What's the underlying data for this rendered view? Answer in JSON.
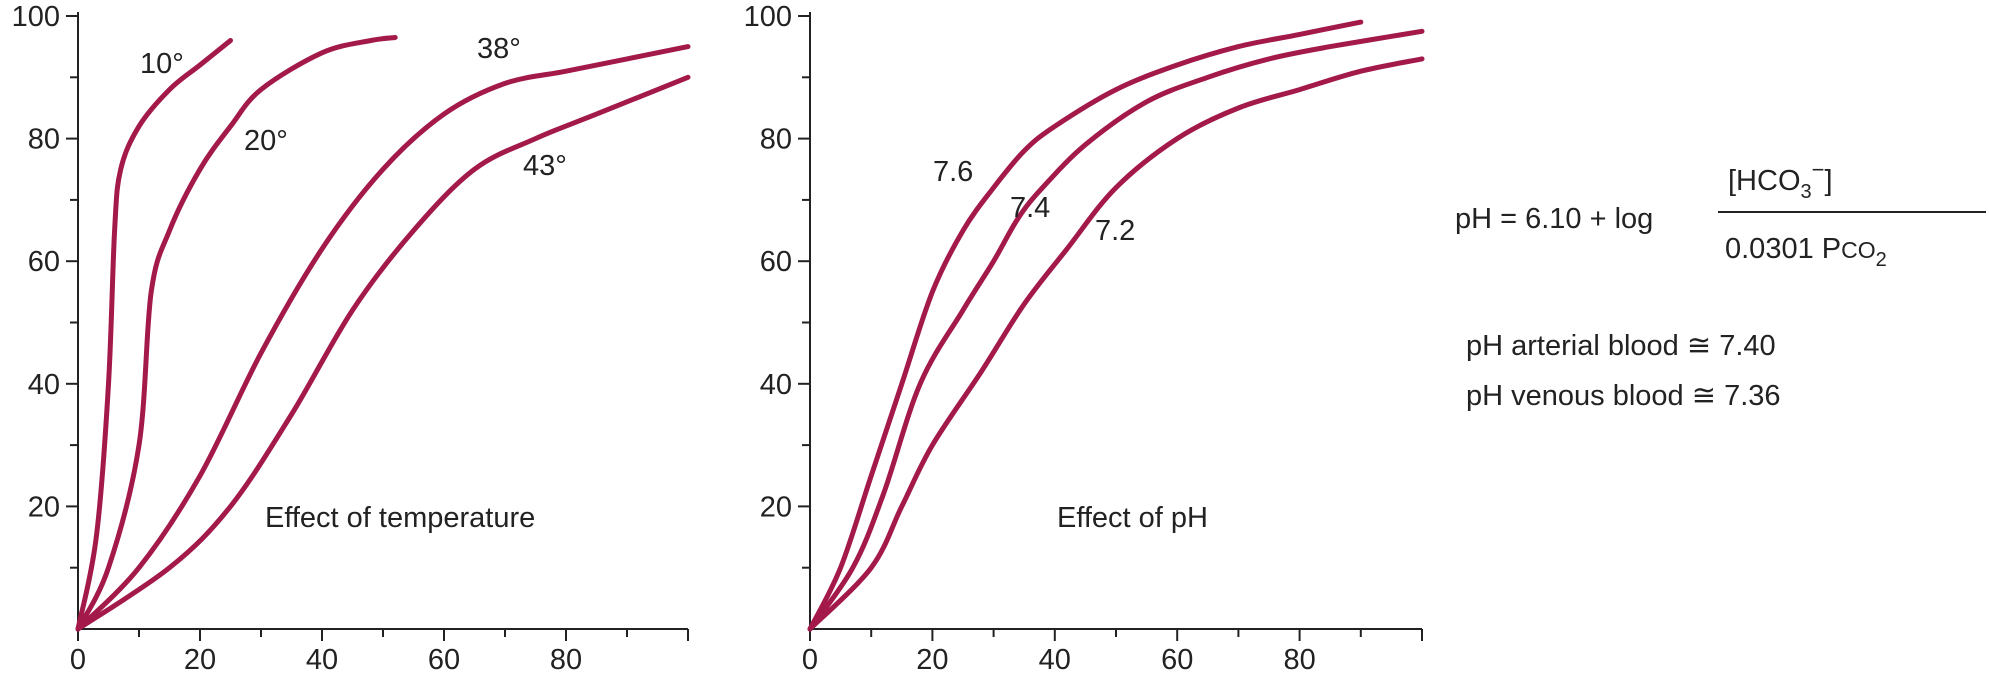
{
  "theme": {
    "curve_color": "#a3194a",
    "axis_color": "#222222",
    "text_color": "#222222"
  },
  "chart_data": [
    {
      "type": "line",
      "caption": "Effect of temperature",
      "xlim": [
        0,
        100
      ],
      "ylim": [
        0,
        100
      ],
      "x_ticks": [
        0,
        20,
        40,
        60,
        80
      ],
      "y_ticks": [
        20,
        40,
        60,
        80,
        100
      ],
      "series": [
        {
          "name": "10°",
          "points": [
            [
              0,
              0
            ],
            [
              3,
              15
            ],
            [
              5,
              40
            ],
            [
              6,
              65
            ],
            [
              7,
              75
            ],
            [
              10,
              82
            ],
            [
              15,
              88
            ],
            [
              20,
              92
            ],
            [
              25,
              96
            ]
          ]
        },
        {
          "name": "20°",
          "points": [
            [
              0,
              0
            ],
            [
              5,
              10
            ],
            [
              10,
              30
            ],
            [
              12,
              55
            ],
            [
              15,
              65
            ],
            [
              20,
              75
            ],
            [
              25,
              82
            ],
            [
              30,
              88
            ],
            [
              40,
              94
            ],
            [
              48,
              96
            ],
            [
              52,
              96.5
            ]
          ]
        },
        {
          "name": "38°",
          "points": [
            [
              0,
              0
            ],
            [
              10,
              10
            ],
            [
              20,
              25
            ],
            [
              30,
              45
            ],
            [
              40,
              62
            ],
            [
              50,
              75
            ],
            [
              60,
              84
            ],
            [
              70,
              89
            ],
            [
              80,
              91
            ],
            [
              90,
              93
            ],
            [
              100,
              95
            ]
          ]
        },
        {
          "name": "43°",
          "points": [
            [
              0,
              0
            ],
            [
              15,
              10
            ],
            [
              25,
              20
            ],
            [
              35,
              35
            ],
            [
              45,
              52
            ],
            [
              55,
              65
            ],
            [
              65,
              75
            ],
            [
              75,
              80
            ],
            [
              85,
              84
            ],
            [
              100,
              90
            ]
          ]
        }
      ]
    },
    {
      "type": "line",
      "caption": "Effect of pH",
      "xlim": [
        0,
        100
      ],
      "ylim": [
        0,
        100
      ],
      "x_ticks": [
        0,
        20,
        40,
        60,
        80
      ],
      "y_ticks": [
        20,
        40,
        60,
        80,
        100
      ],
      "series": [
        {
          "name": "7.6",
          "points": [
            [
              0,
              0
            ],
            [
              5,
              10
            ],
            [
              10,
              25
            ],
            [
              15,
              40
            ],
            [
              20,
              55
            ],
            [
              25,
              65
            ],
            [
              30,
              72
            ],
            [
              35,
              78
            ],
            [
              40,
              82
            ],
            [
              50,
              88
            ],
            [
              60,
              92
            ],
            [
              70,
              95
            ],
            [
              80,
              97
            ],
            [
              90,
              99
            ]
          ]
        },
        {
          "name": "7.4",
          "points": [
            [
              0,
              0
            ],
            [
              7,
              10
            ],
            [
              12,
              22
            ],
            [
              18,
              40
            ],
            [
              25,
              52
            ],
            [
              30,
              60
            ],
            [
              34,
              67
            ],
            [
              38,
              72
            ],
            [
              45,
              79
            ],
            [
              55,
              86
            ],
            [
              65,
              90
            ],
            [
              75,
              93
            ],
            [
              85,
              95
            ],
            [
              100,
              97.5
            ]
          ]
        },
        {
          "name": "7.2",
          "points": [
            [
              0,
              0
            ],
            [
              10,
              10
            ],
            [
              15,
              20
            ],
            [
              20,
              30
            ],
            [
              28,
              42
            ],
            [
              35,
              53
            ],
            [
              42,
              62
            ],
            [
              50,
              72
            ],
            [
              60,
              80
            ],
            [
              70,
              85
            ],
            [
              80,
              88
            ],
            [
              90,
              91
            ],
            [
              100,
              93
            ]
          ]
        }
      ]
    }
  ],
  "equation": {
    "lhs": "pH = 6.10 + log",
    "numerator": "[HCO",
    "num_sub": "3",
    "num_sup": "−",
    "num_close": "]",
    "denominator": "0.0301 P",
    "den_gas": "CO",
    "den_sub": "2"
  },
  "notes": [
    "pH arterial blood ≅ 7.40",
    "pH venous blood ≅ 7.36"
  ]
}
